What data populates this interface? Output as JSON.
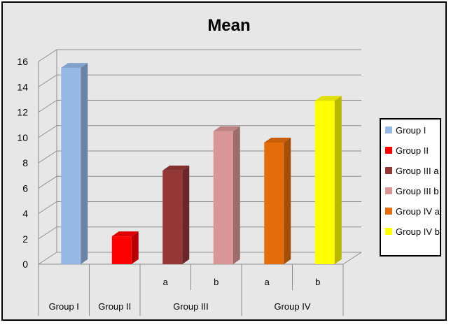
{
  "chart_data": {
    "type": "bar",
    "title": "Mean",
    "xlabel": "",
    "ylabel": "",
    "ylim": [
      0,
      16
    ],
    "yticks": [
      0,
      2,
      4,
      6,
      8,
      10,
      12,
      14,
      16
    ],
    "grid": true,
    "legend_position": "right",
    "series": [
      {
        "name": "Group I",
        "value": 15.5,
        "color": "#95b8e6"
      },
      {
        "name": "Group II",
        "value": 2.2,
        "color": "#ff0000"
      },
      {
        "name": "Group III a",
        "value": 7.4,
        "color": "#953735"
      },
      {
        "name": "Group III b",
        "value": 10.5,
        "color": "#d99694"
      },
      {
        "name": "Group IV a",
        "value": 9.6,
        "color": "#e46c0a"
      },
      {
        "name": "Group IV b",
        "value": 12.9,
        "color": "#ffff00"
      }
    ],
    "categories_level1": [
      "",
      "",
      "a",
      "b",
      "a",
      "b"
    ],
    "categories_level2": [
      {
        "label": "Group I",
        "span": 1
      },
      {
        "label": "Group II",
        "span": 1
      },
      {
        "label": "Group III",
        "span": 2
      },
      {
        "label": "Group IV",
        "span": 2
      }
    ]
  }
}
